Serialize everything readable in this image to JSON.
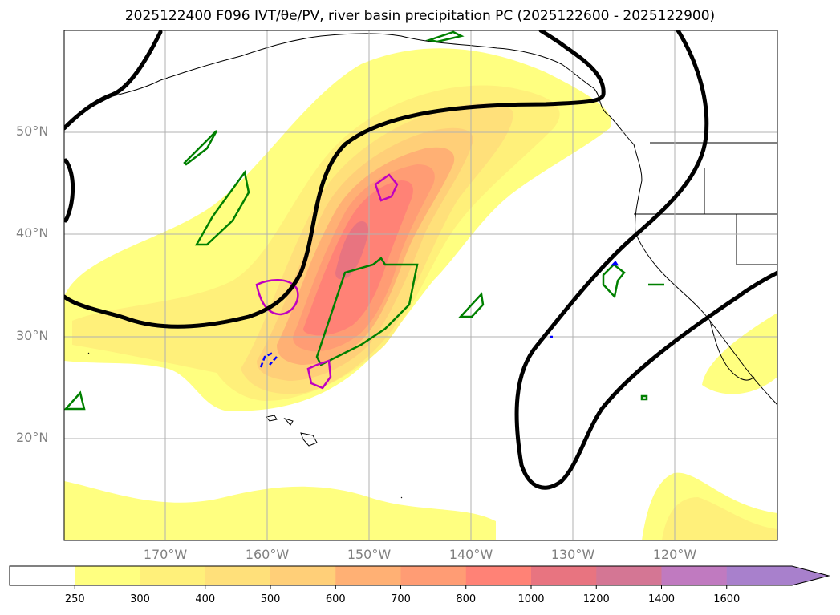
{
  "title": "2025122400 F096 IVT/θe/PV, river basin precipitation PC (2025122600 - 2025122900)",
  "lat_labels": [
    "50°N",
    "40°N",
    "30°N",
    "20°N"
  ],
  "lon_labels": [
    "170°W",
    "160°W",
    "150°W",
    "140°W",
    "130°W",
    "120°W"
  ],
  "colorbar": {
    "levels": [
      "250",
      "300",
      "400",
      "500",
      "600",
      "700",
      "800",
      "1000",
      "1200",
      "1400",
      "1600"
    ],
    "colors": [
      "#ffffff",
      "#ffff80",
      "#fff07a",
      "#ffe07a",
      "#ffcf78",
      "#ffb074",
      "#ff9c74",
      "#ff8276",
      "#e87480",
      "#d47694",
      "#c07ac0",
      "#a880cc"
    ],
    "extend": "max"
  },
  "colors": {
    "theta_e_contour": "#000000",
    "pv_contour": "#008000",
    "magenta_contour": "#c000c0",
    "blue_contour": "#0000ff",
    "grid": "#b0b0b0",
    "coastline": "#000000"
  }
}
